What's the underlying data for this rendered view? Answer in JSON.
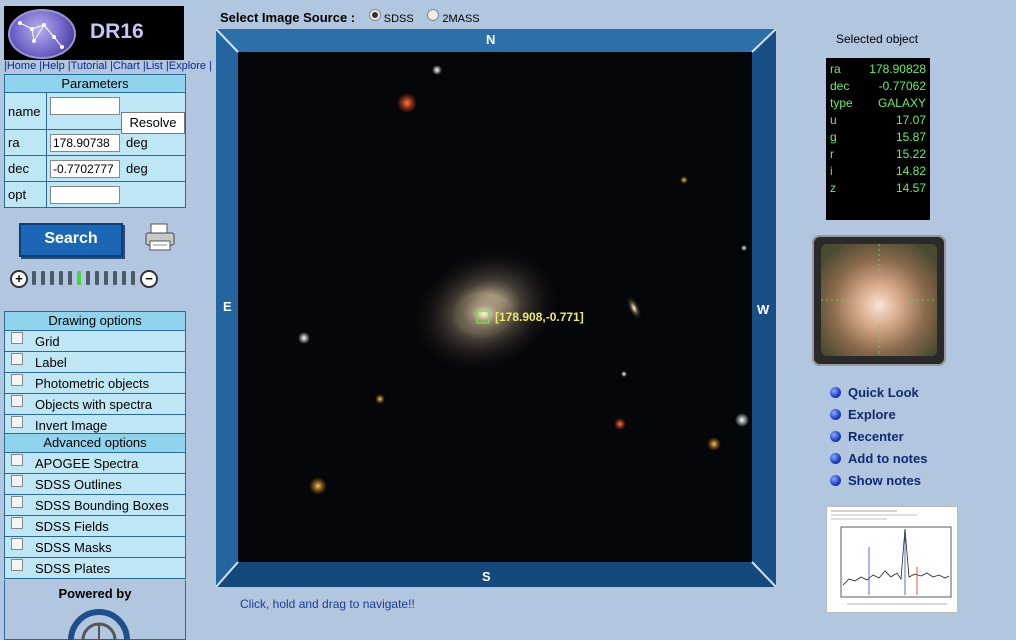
{
  "logo": {
    "text": "DR16"
  },
  "nav": {
    "items": [
      "Home",
      "Help",
      "Tutorial",
      "Chart",
      "List",
      "Explore"
    ]
  },
  "parameters": {
    "title": "Parameters",
    "name": {
      "label": "name",
      "value": ""
    },
    "resolve_label": "Resolve",
    "ra": {
      "label": "ra",
      "value": "178.90738",
      "unit": "deg"
    },
    "dec": {
      "label": "dec",
      "value": "-0.7702777",
      "unit": "deg"
    },
    "opt": {
      "label": "opt",
      "value": ""
    }
  },
  "search_label": "Search",
  "zoom": {
    "level": 5,
    "steps": 12
  },
  "drawing_options": {
    "title": "Drawing options",
    "items": [
      "Grid",
      "Label",
      "Photometric objects",
      "Objects with spectra",
      "Invert Image"
    ]
  },
  "advanced_options": {
    "title": "Advanced options",
    "items": [
      "APOGEE Spectra",
      "SDSS Outlines",
      "SDSS Bounding Boxes",
      "SDSS Fields",
      "SDSS Masks",
      "SDSS Plates"
    ]
  },
  "powered_by": "Powered by",
  "image_source": {
    "label": "Select Image Source :",
    "options": [
      "SDSS",
      "2MASS"
    ],
    "selected": "SDSS"
  },
  "compass": {
    "n": "N",
    "s": "S",
    "e": "E",
    "w": "W"
  },
  "target_label": "[178.908,-0.771]",
  "hint": "Click, hold and drag to navigate!!",
  "selected_object": {
    "title": "Selected object",
    "rows": [
      {
        "k": "ra",
        "v": "178.90828"
      },
      {
        "k": "dec",
        "v": "-0.77062"
      },
      {
        "k": "type",
        "v": "GALAXY"
      },
      {
        "k": "u",
        "v": "17.07"
      },
      {
        "k": "g",
        "v": "15.87"
      },
      {
        "k": "r",
        "v": "15.22"
      },
      {
        "k": "i",
        "v": "14.82"
      },
      {
        "k": "z",
        "v": "14.57"
      }
    ]
  },
  "actions": [
    "Quick Look",
    "Explore",
    "Recenter",
    "Add to notes",
    "Show notes"
  ],
  "colors": {
    "frame": "#1c5a94",
    "panel": "#bfe6f4",
    "panel_head": "#8fd4ec",
    "readout": "#69ee63",
    "label": "#ecec6a"
  }
}
